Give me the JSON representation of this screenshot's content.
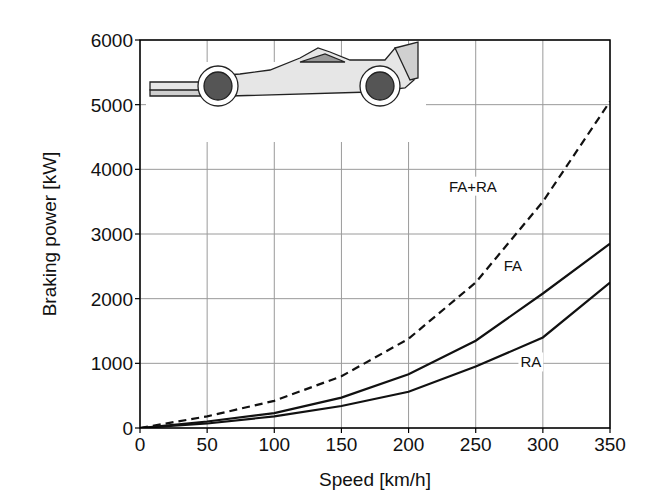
{
  "chart_data": {
    "type": "line",
    "x_label": "Speed [km/h]",
    "y_label": "Braking power [kW]",
    "x": [
      0,
      50,
      100,
      150,
      200,
      250,
      300,
      350
    ],
    "series": [
      {
        "name": "FA+RA",
        "color": "#111111",
        "line_style": "dashed",
        "values": [
          0,
          180,
          420,
          800,
          1380,
          2250,
          3500,
          5050
        ]
      },
      {
        "name": "FA",
        "color": "#111111",
        "line_style": "solid",
        "values": [
          0,
          100,
          230,
          470,
          830,
          1350,
          2080,
          2850
        ]
      },
      {
        "name": "RA",
        "color": "#111111",
        "line_style": "solid",
        "values": [
          0,
          70,
          180,
          340,
          560,
          950,
          1400,
          2250
        ]
      }
    ],
    "xlim": [
      0,
      350
    ],
    "xticks": [
      0,
      50,
      100,
      150,
      200,
      250,
      300,
      350
    ],
    "ylim": [
      0,
      6000
    ],
    "yticks": [
      0,
      1000,
      2000,
      3000,
      4000,
      5000,
      6000
    ],
    "grid": true
  }
}
